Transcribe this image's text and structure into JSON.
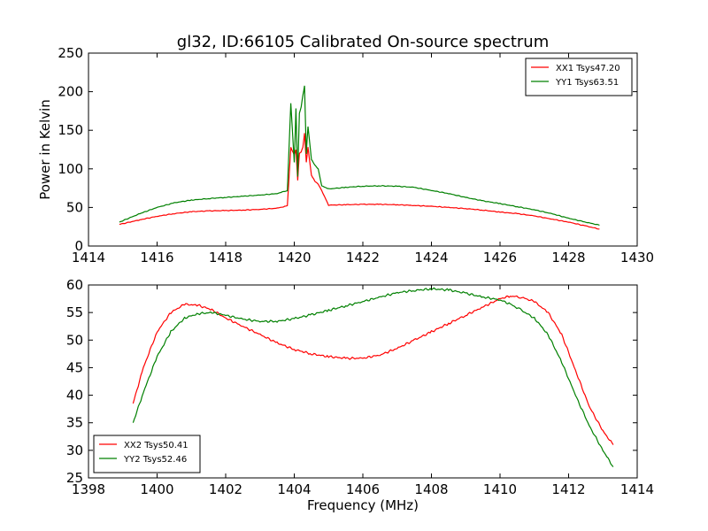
{
  "chart_data": [
    {
      "type": "line",
      "title": "gl32, ID:66105 Calibrated On-source spectrum",
      "xlabel": "",
      "ylabel": "Power in Kelvin",
      "xlim": [
        1414,
        1430
      ],
      "ylim": [
        0,
        250
      ],
      "xticks": [
        "1414",
        "1416",
        "1418",
        "1420",
        "1422",
        "1424",
        "1426",
        "1428",
        "1430"
      ],
      "yticks": [
        "0",
        "50",
        "100",
        "150",
        "200",
        "250"
      ],
      "legend_position": "top-right",
      "grid": false,
      "series": [
        {
          "name": "XX1 Tsys47.20",
          "color": "#ff0000",
          "x": [
            1414.9,
            1415.5,
            1416,
            1416.5,
            1417,
            1417.5,
            1418,
            1418.5,
            1419,
            1419.5,
            1419.8,
            1419.9,
            1420.0,
            1420.05,
            1420.1,
            1420.15,
            1420.2,
            1420.25,
            1420.3,
            1420.35,
            1420.4,
            1420.5,
            1420.6,
            1420.7,
            1420.8,
            1421,
            1421.5,
            1422,
            1422.5,
            1423,
            1423.5,
            1424,
            1424.5,
            1425,
            1425.5,
            1426,
            1426.5,
            1427,
            1427.5,
            1428,
            1428.5,
            1428.9
          ],
          "values": [
            28,
            34,
            38.5,
            42,
            44.5,
            45.5,
            46,
            46.5,
            47.5,
            49,
            52,
            128,
            118,
            125,
            85,
            120,
            122,
            128,
            146,
            108,
            128,
            92,
            84,
            80,
            72,
            53,
            53.5,
            54,
            54,
            53.5,
            52.5,
            51.5,
            50,
            48.5,
            46.5,
            44,
            42,
            39,
            35,
            31,
            26,
            22
          ]
        },
        {
          "name": "YY1 Tsys63.51",
          "color": "#008000",
          "x": [
            1414.9,
            1415.5,
            1416,
            1416.5,
            1417,
            1417.5,
            1418,
            1418.5,
            1419,
            1419.5,
            1419.8,
            1419.9,
            1420.0,
            1420.05,
            1420.1,
            1420.15,
            1420.2,
            1420.25,
            1420.3,
            1420.35,
            1420.4,
            1420.5,
            1420.6,
            1420.7,
            1420.8,
            1421,
            1421.5,
            1422,
            1422.5,
            1423,
            1423.5,
            1424,
            1424.5,
            1425,
            1425.5,
            1426,
            1426.5,
            1427,
            1427.5,
            1428,
            1428.5,
            1428.9
          ],
          "values": [
            31,
            42,
            50,
            56,
            59.5,
            61.5,
            63,
            64.5,
            66,
            68,
            72,
            185,
            108,
            178,
            90,
            172,
            180,
            195,
            208,
            120,
            155,
            112,
            105,
            100,
            78,
            74,
            76,
            77.5,
            78,
            77.5,
            76,
            72,
            68,
            63,
            58.5,
            55,
            51,
            47,
            42,
            36,
            31,
            27
          ]
        }
      ]
    },
    {
      "type": "line",
      "title": "",
      "xlabel": "Frequency (MHz)",
      "ylabel": "",
      "xlim": [
        1398,
        1414
      ],
      "ylim": [
        25,
        60
      ],
      "xticks": [
        "1398",
        "1400",
        "1402",
        "1404",
        "1406",
        "1408",
        "1410",
        "1412",
        "1414"
      ],
      "yticks": [
        "25",
        "30",
        "35",
        "40",
        "45",
        "50",
        "55",
        "60"
      ],
      "legend_position": "bottom-left",
      "grid": false,
      "series": [
        {
          "name": "XX2 Tsys50.41",
          "color": "#ff0000",
          "x": [
            1399.3,
            1399.6,
            1400,
            1400.4,
            1400.8,
            1401.2,
            1401.6,
            1402,
            1402.5,
            1403,
            1403.5,
            1404,
            1404.5,
            1405,
            1405.5,
            1406,
            1406.5,
            1407,
            1407.5,
            1408,
            1408.5,
            1409,
            1409.5,
            1410,
            1410.3,
            1410.6,
            1411,
            1411.4,
            1411.8,
            1412.2,
            1412.6,
            1413,
            1413.3
          ],
          "values": [
            38.5,
            45,
            51.5,
            55,
            56.5,
            56.3,
            55.5,
            54,
            52.5,
            51,
            49.5,
            48.3,
            47.5,
            47,
            46.7,
            46.7,
            47.3,
            48.5,
            50,
            51.5,
            53,
            54.5,
            56,
            57.5,
            58,
            57.8,
            57,
            55,
            51,
            44.5,
            38,
            33.5,
            31
          ]
        },
        {
          "name": "YY2 Tsys52.46",
          "color": "#008000",
          "x": [
            1399.3,
            1399.6,
            1400,
            1400.4,
            1400.8,
            1401.2,
            1401.6,
            1402,
            1402.5,
            1403,
            1403.5,
            1404,
            1404.5,
            1405,
            1405.5,
            1406,
            1406.5,
            1407,
            1407.5,
            1408,
            1408.5,
            1409,
            1409.5,
            1410,
            1410.3,
            1410.6,
            1411,
            1411.4,
            1411.8,
            1412.2,
            1412.6,
            1413,
            1413.3
          ],
          "values": [
            35,
            40.5,
            47,
            51.5,
            54,
            54.8,
            55,
            54.5,
            53.8,
            53.4,
            53.4,
            53.9,
            54.6,
            55.4,
            56.2,
            57,
            57.8,
            58.6,
            59,
            59.3,
            59.1,
            58.5,
            57.8,
            57.3,
            56.5,
            55.5,
            54,
            51,
            46,
            40,
            34.5,
            30,
            27
          ]
        }
      ]
    }
  ]
}
